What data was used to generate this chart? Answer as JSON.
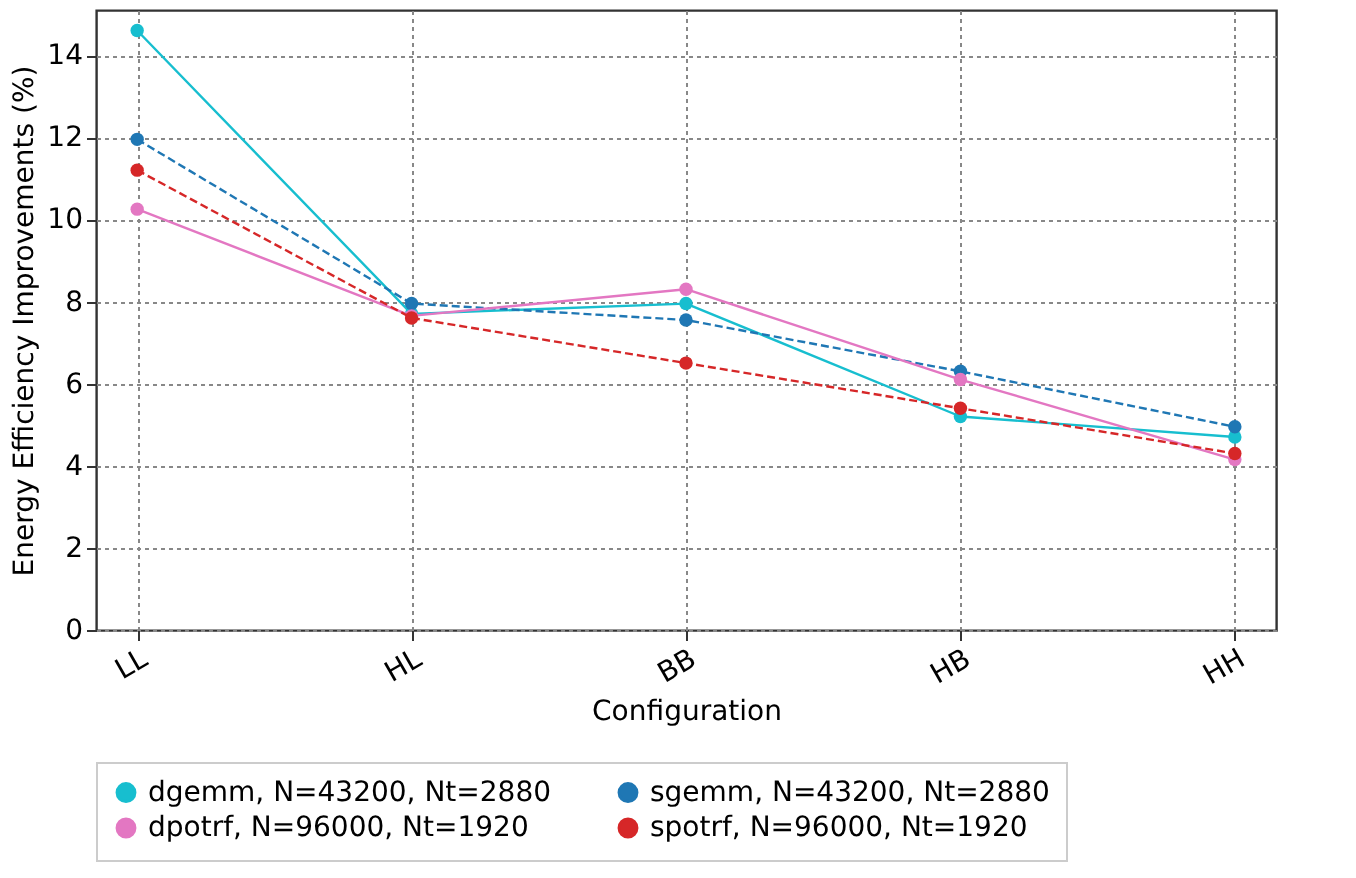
{
  "chart_data": {
    "type": "line",
    "xlabel": "Configuration",
    "ylabel": "Energy Efficiency Improvements (%)",
    "categories": [
      "LL",
      "HL",
      "BB",
      "HB",
      "HH"
    ],
    "series": [
      {
        "name": "dgemm, N=43200, Nt=2880",
        "color": "#17becf",
        "line_style": "solid",
        "values": [
          14.6,
          7.7,
          7.95,
          5.2,
          4.7
        ]
      },
      {
        "name": "sgemm, N=43200, Nt=2880",
        "color": "#1f77b4",
        "line_style": "dashed",
        "values": [
          11.95,
          7.95,
          7.55,
          6.3,
          4.95
        ]
      },
      {
        "name": "dpotrf, N=96000, Nt=1920",
        "color": "#e377c2",
        "line_style": "solid",
        "values": [
          10.25,
          7.65,
          8.3,
          6.1,
          4.15
        ]
      },
      {
        "name": "spotrf, N=96000, Nt=1920",
        "color": "#d62728",
        "line_style": "dashed",
        "values": [
          11.2,
          7.6,
          6.5,
          5.4,
          4.3
        ]
      }
    ],
    "ylim": [
      0,
      15.1
    ],
    "yticks": [
      0,
      2,
      4,
      6,
      8,
      10,
      12,
      14
    ],
    "grid": true,
    "legend": "bottom",
    "marker": "circle"
  }
}
